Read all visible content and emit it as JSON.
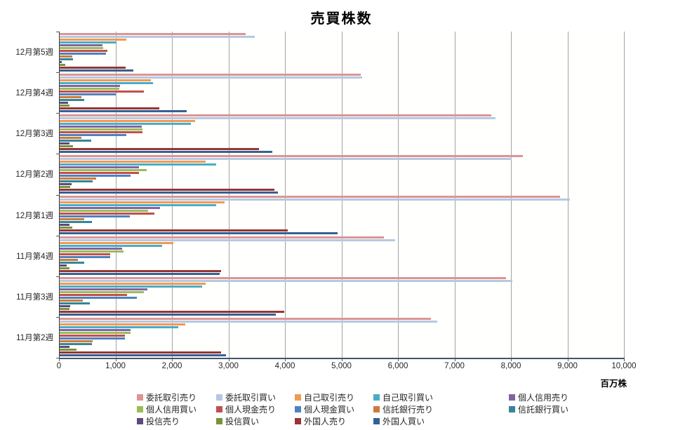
{
  "title": "売買株数",
  "chart_data": {
    "type": "bar",
    "orientation": "horizontal",
    "title": "売買株数",
    "xlabel_unit": "百万株",
    "xlim": [
      0,
      10000
    ],
    "x_tick_interval": 1000,
    "x_tick_labels": [
      "0",
      "1,000",
      "2,000",
      "3,000",
      "4,000",
      "5,000",
      "6,000",
      "7,000",
      "8,000",
      "9,000",
      "10,000"
    ],
    "grid": "vertical",
    "legend_position": "bottom",
    "legend_columns": 5,
    "categories": [
      "12月第5週",
      "12月第4週",
      "12月第3週",
      "12月第2週",
      "12月第1週",
      "11月第4週",
      "11月第3週",
      "11月第2週"
    ],
    "series": [
      {
        "name": "委託取引売り",
        "color": "#D99694",
        "values": [
          3290,
          5330,
          7640,
          8200,
          8860,
          5740,
          7900,
          6570
        ]
      },
      {
        "name": "委託取引買い",
        "color": "#B6C8E0",
        "values": [
          3450,
          5350,
          7710,
          8000,
          9030,
          5940,
          8010,
          6680
        ]
      },
      {
        "name": "自己取引売り",
        "color": "#F09A52",
        "values": [
          1180,
          1620,
          2400,
          2580,
          2920,
          2010,
          2590,
          2220
        ]
      },
      {
        "name": "自己取引買い",
        "color": "#4BACC6",
        "values": [
          1010,
          1650,
          2320,
          2770,
          2770,
          1810,
          2520,
          2100
        ]
      },
      {
        "name": "個人信用売り",
        "color": "#8064A2",
        "values": [
          760,
          1070,
          1450,
          1400,
          1780,
          1100,
          1550,
          1250
        ]
      },
      {
        "name": "個人信用買い",
        "color": "#9BBB59",
        "values": [
          770,
          1060,
          1460,
          1540,
          1560,
          1130,
          1490,
          1260
        ]
      },
      {
        "name": "個人現金売り",
        "color": "#C0504D",
        "values": [
          840,
          1490,
          1470,
          1400,
          1680,
          890,
          1190,
          1150
        ]
      },
      {
        "name": "個人現金買い",
        "color": "#4F81BD",
        "values": [
          820,
          990,
          1180,
          1250,
          1240,
          900,
          1370,
          1150
        ]
      },
      {
        "name": "信託銀行売り",
        "color": "#CB7B38",
        "values": [
          220,
          380,
          380,
          640,
          440,
          320,
          410,
          580
        ]
      },
      {
        "name": "信託銀行買い",
        "color": "#35859B",
        "values": [
          230,
          440,
          560,
          580,
          570,
          440,
          540,
          570
        ]
      },
      {
        "name": "投信売り",
        "color": "#5F497A",
        "values": [
          40,
          150,
          180,
          210,
          180,
          130,
          190,
          180
        ]
      },
      {
        "name": "投信買い",
        "color": "#77933C",
        "values": [
          100,
          170,
          230,
          190,
          220,
          180,
          180,
          300
        ]
      },
      {
        "name": "外国人売り",
        "color": "#943634",
        "values": [
          1170,
          1760,
          3530,
          3800,
          4040,
          2860,
          3970,
          2860
        ]
      },
      {
        "name": "外国人買い",
        "color": "#366092",
        "values": [
          1310,
          2250,
          3770,
          3860,
          4920,
          2830,
          3820,
          2950
        ]
      }
    ]
  }
}
